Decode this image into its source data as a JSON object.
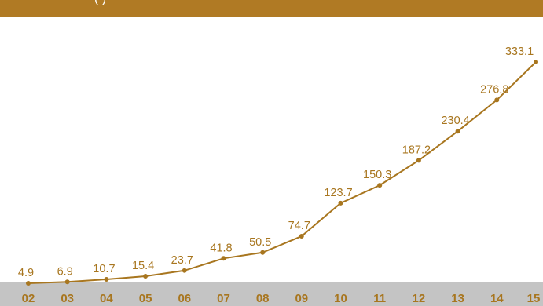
{
  "header": {
    "band_text": "(           )"
  },
  "colors": {
    "accent": "#b07a24",
    "line": "#a8761f",
    "axis_band": "#c4c4c4",
    "background": "#ffffff"
  },
  "chart_data": {
    "type": "line",
    "title": "",
    "xlabel": "",
    "ylabel": "",
    "categories": [
      "02",
      "03",
      "04",
      "05",
      "06",
      "07",
      "08",
      "09",
      "10",
      "11",
      "12",
      "13",
      "14",
      "15"
    ],
    "series": [
      {
        "values": [
          4.9,
          6.9,
          10.7,
          15.4,
          23.7,
          41.8,
          50.5,
          74.7,
          123.7,
          150.3,
          187.2,
          230.4,
          276.8,
          333.1
        ]
      }
    ],
    "ylim": [
      0,
      340
    ],
    "grid": false,
    "legend": "none",
    "data_labels": true
  }
}
